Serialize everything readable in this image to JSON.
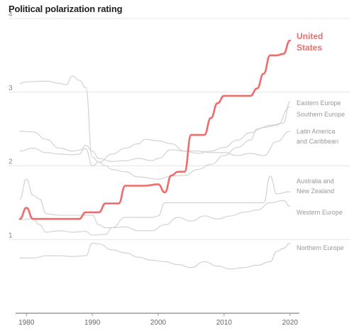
{
  "chart_data": {
    "type": "line",
    "title": "Political polarization rating",
    "xlabel": "",
    "ylabel": "",
    "xlim": [
      1979,
      2021
    ],
    "ylim": [
      0,
      4
    ],
    "x_ticks": [
      "1980",
      "1990",
      "2000",
      "2010",
      "2020"
    ],
    "y_ticks": [
      "1",
      "2",
      "3",
      "4"
    ],
    "grid": "horizontal",
    "highlight_color": "#ef6c6c",
    "background_series_color": "#cfcfcf",
    "series": [
      {
        "name": "United States",
        "label_lines": [
          "United",
          "States"
        ],
        "highlight": true,
        "points": [
          [
            1979,
            1.28
          ],
          [
            1980,
            1.43
          ],
          [
            1981,
            1.28
          ],
          [
            1983,
            1.28
          ],
          [
            1987,
            1.28
          ],
          [
            1988,
            1.28
          ],
          [
            1989,
            1.37
          ],
          [
            1990,
            1.37
          ],
          [
            1991,
            1.37
          ],
          [
            1992,
            1.49
          ],
          [
            1993,
            1.49
          ],
          [
            1994,
            1.49
          ],
          [
            1995,
            1.73
          ],
          [
            1996,
            1.73
          ],
          [
            1998,
            1.73
          ],
          [
            2000,
            1.75
          ],
          [
            2001,
            1.64
          ],
          [
            2002,
            1.87
          ],
          [
            2003,
            1.92
          ],
          [
            2004,
            1.92
          ],
          [
            2005,
            2.42
          ],
          [
            2006,
            2.42
          ],
          [
            2007,
            2.42
          ],
          [
            2008,
            2.65
          ],
          [
            2009,
            2.85
          ],
          [
            2010,
            2.95
          ],
          [
            2012,
            2.95
          ],
          [
            2014,
            2.95
          ],
          [
            2015,
            3.05
          ],
          [
            2016,
            3.25
          ],
          [
            2017,
            3.5
          ],
          [
            2018,
            3.5
          ],
          [
            2019,
            3.52
          ],
          [
            2020,
            3.7
          ]
        ]
      },
      {
        "name": "Eastern Europe",
        "label_lines": [
          "Eastern Europe"
        ],
        "highlight": false,
        "points": [
          [
            1979,
            3.12
          ],
          [
            1980,
            3.14
          ],
          [
            1983,
            3.15
          ],
          [
            1985,
            3.12
          ],
          [
            1986,
            3.1
          ],
          [
            1987,
            3.22
          ],
          [
            1988,
            3.16
          ],
          [
            1989,
            3.06
          ],
          [
            1990,
            2.12
          ],
          [
            1991,
            2.05
          ],
          [
            1992,
            2.0
          ],
          [
            1993,
            1.95
          ],
          [
            1995,
            1.92
          ],
          [
            1997,
            1.85
          ],
          [
            2000,
            1.82
          ],
          [
            2002,
            1.86
          ],
          [
            2004,
            1.87
          ],
          [
            2006,
            1.95
          ],
          [
            2008,
            2.02
          ],
          [
            2010,
            2.14
          ],
          [
            2012,
            2.25
          ],
          [
            2014,
            2.35
          ],
          [
            2015,
            2.5
          ],
          [
            2017,
            2.55
          ],
          [
            2019,
            2.58
          ],
          [
            2020,
            2.87
          ]
        ]
      },
      {
        "name": "Southern Europe",
        "label_lines": [
          "Southern Europe"
        ],
        "highlight": false,
        "points": [
          [
            1979,
            2.47
          ],
          [
            1981,
            2.46
          ],
          [
            1983,
            2.36
          ],
          [
            1985,
            2.24
          ],
          [
            1987,
            2.2
          ],
          [
            1989,
            2.23
          ],
          [
            1990,
            2.0
          ],
          [
            1991,
            2.05
          ],
          [
            1993,
            2.16
          ],
          [
            1995,
            2.24
          ],
          [
            1997,
            2.3
          ],
          [
            1998,
            2.36
          ],
          [
            2000,
            2.34
          ],
          [
            2002,
            2.3
          ],
          [
            2004,
            2.2
          ],
          [
            2006,
            2.17
          ],
          [
            2008,
            2.2
          ],
          [
            2010,
            2.25
          ],
          [
            2012,
            2.35
          ],
          [
            2014,
            2.45
          ],
          [
            2016,
            2.52
          ],
          [
            2018,
            2.55
          ],
          [
            2020,
            2.8
          ]
        ]
      },
      {
        "name": "Latin America and Caribbean",
        "label_lines": [
          "Latin America",
          "and Caribbean"
        ],
        "highlight": false,
        "points": [
          [
            1979,
            2.2
          ],
          [
            1981,
            2.24
          ],
          [
            1983,
            2.18
          ],
          [
            1985,
            2.16
          ],
          [
            1987,
            2.15
          ],
          [
            1988,
            2.16
          ],
          [
            1989,
            2.28
          ],
          [
            1990,
            2.2
          ],
          [
            1991,
            2.1
          ],
          [
            1993,
            2.06
          ],
          [
            1995,
            2.07
          ],
          [
            1997,
            2.1
          ],
          [
            1999,
            2.07
          ],
          [
            2000,
            2.1
          ],
          [
            2002,
            2.22
          ],
          [
            2004,
            2.2
          ],
          [
            2006,
            2.2
          ],
          [
            2008,
            2.18
          ],
          [
            2010,
            2.18
          ],
          [
            2012,
            2.14
          ],
          [
            2014,
            2.17
          ],
          [
            2016,
            2.14
          ],
          [
            2018,
            2.33
          ],
          [
            2020,
            2.47
          ]
        ]
      },
      {
        "name": "Australia and New Zealand",
        "label_lines": [
          "Australia and",
          "New Zealand"
        ],
        "highlight": false,
        "points": [
          [
            1979,
            1.55
          ],
          [
            1980,
            1.82
          ],
          [
            1981,
            1.6
          ],
          [
            1982,
            1.55
          ],
          [
            1983,
            1.35
          ],
          [
            1985,
            1.33
          ],
          [
            1987,
            1.33
          ],
          [
            1989,
            1.33
          ],
          [
            1990,
            1.33
          ],
          [
            1991,
            1.2
          ],
          [
            1992,
            1.16
          ],
          [
            1993,
            1.16
          ],
          [
            1995,
            1.3
          ],
          [
            1997,
            1.3
          ],
          [
            1999,
            1.3
          ],
          [
            2000,
            1.32
          ],
          [
            2001,
            1.5
          ],
          [
            2003,
            1.5
          ],
          [
            2005,
            1.5
          ],
          [
            2008,
            1.5
          ],
          [
            2010,
            1.5
          ],
          [
            2012,
            1.5
          ],
          [
            2014,
            1.5
          ],
          [
            2016,
            1.5
          ],
          [
            2017,
            1.86
          ],
          [
            2018,
            1.62
          ],
          [
            2020,
            1.65
          ]
        ]
      },
      {
        "name": "Western Europe",
        "label_lines": [
          "Western Europe"
        ],
        "highlight": false,
        "points": [
          [
            1979,
            1.27
          ],
          [
            1981,
            1.28
          ],
          [
            1982,
            1.2
          ],
          [
            1983,
            1.1
          ],
          [
            1985,
            1.12
          ],
          [
            1987,
            1.1
          ],
          [
            1989,
            1.11
          ],
          [
            1990,
            1.06
          ],
          [
            1992,
            1.07
          ],
          [
            1993,
            1.16
          ],
          [
            1995,
            1.17
          ],
          [
            1997,
            1.12
          ],
          [
            1999,
            1.12
          ],
          [
            2001,
            1.2
          ],
          [
            2003,
            1.3
          ],
          [
            2005,
            1.25
          ],
          [
            2007,
            1.32
          ],
          [
            2009,
            1.28
          ],
          [
            2011,
            1.32
          ],
          [
            2013,
            1.37
          ],
          [
            2015,
            1.4
          ],
          [
            2017,
            1.5
          ],
          [
            2019,
            1.53
          ],
          [
            2020,
            1.45
          ]
        ]
      },
      {
        "name": "Northern Europe",
        "label_lines": [
          "Northern Europe"
        ],
        "highlight": false,
        "points": [
          [
            1979,
            0.75
          ],
          [
            1981,
            0.75
          ],
          [
            1983,
            0.78
          ],
          [
            1985,
            0.78
          ],
          [
            1987,
            0.77
          ],
          [
            1989,
            0.78
          ],
          [
            1990,
            0.95
          ],
          [
            1991,
            0.94
          ],
          [
            1993,
            0.86
          ],
          [
            1995,
            0.82
          ],
          [
            1997,
            0.76
          ],
          [
            1999,
            0.72
          ],
          [
            2001,
            0.7
          ],
          [
            2003,
            0.66
          ],
          [
            2005,
            0.62
          ],
          [
            2007,
            0.7
          ],
          [
            2009,
            0.64
          ],
          [
            2011,
            0.6
          ],
          [
            2013,
            0.62
          ],
          [
            2015,
            0.65
          ],
          [
            2017,
            0.7
          ],
          [
            2018,
            0.84
          ],
          [
            2019,
            0.88
          ],
          [
            2020,
            0.95
          ]
        ]
      }
    ]
  }
}
